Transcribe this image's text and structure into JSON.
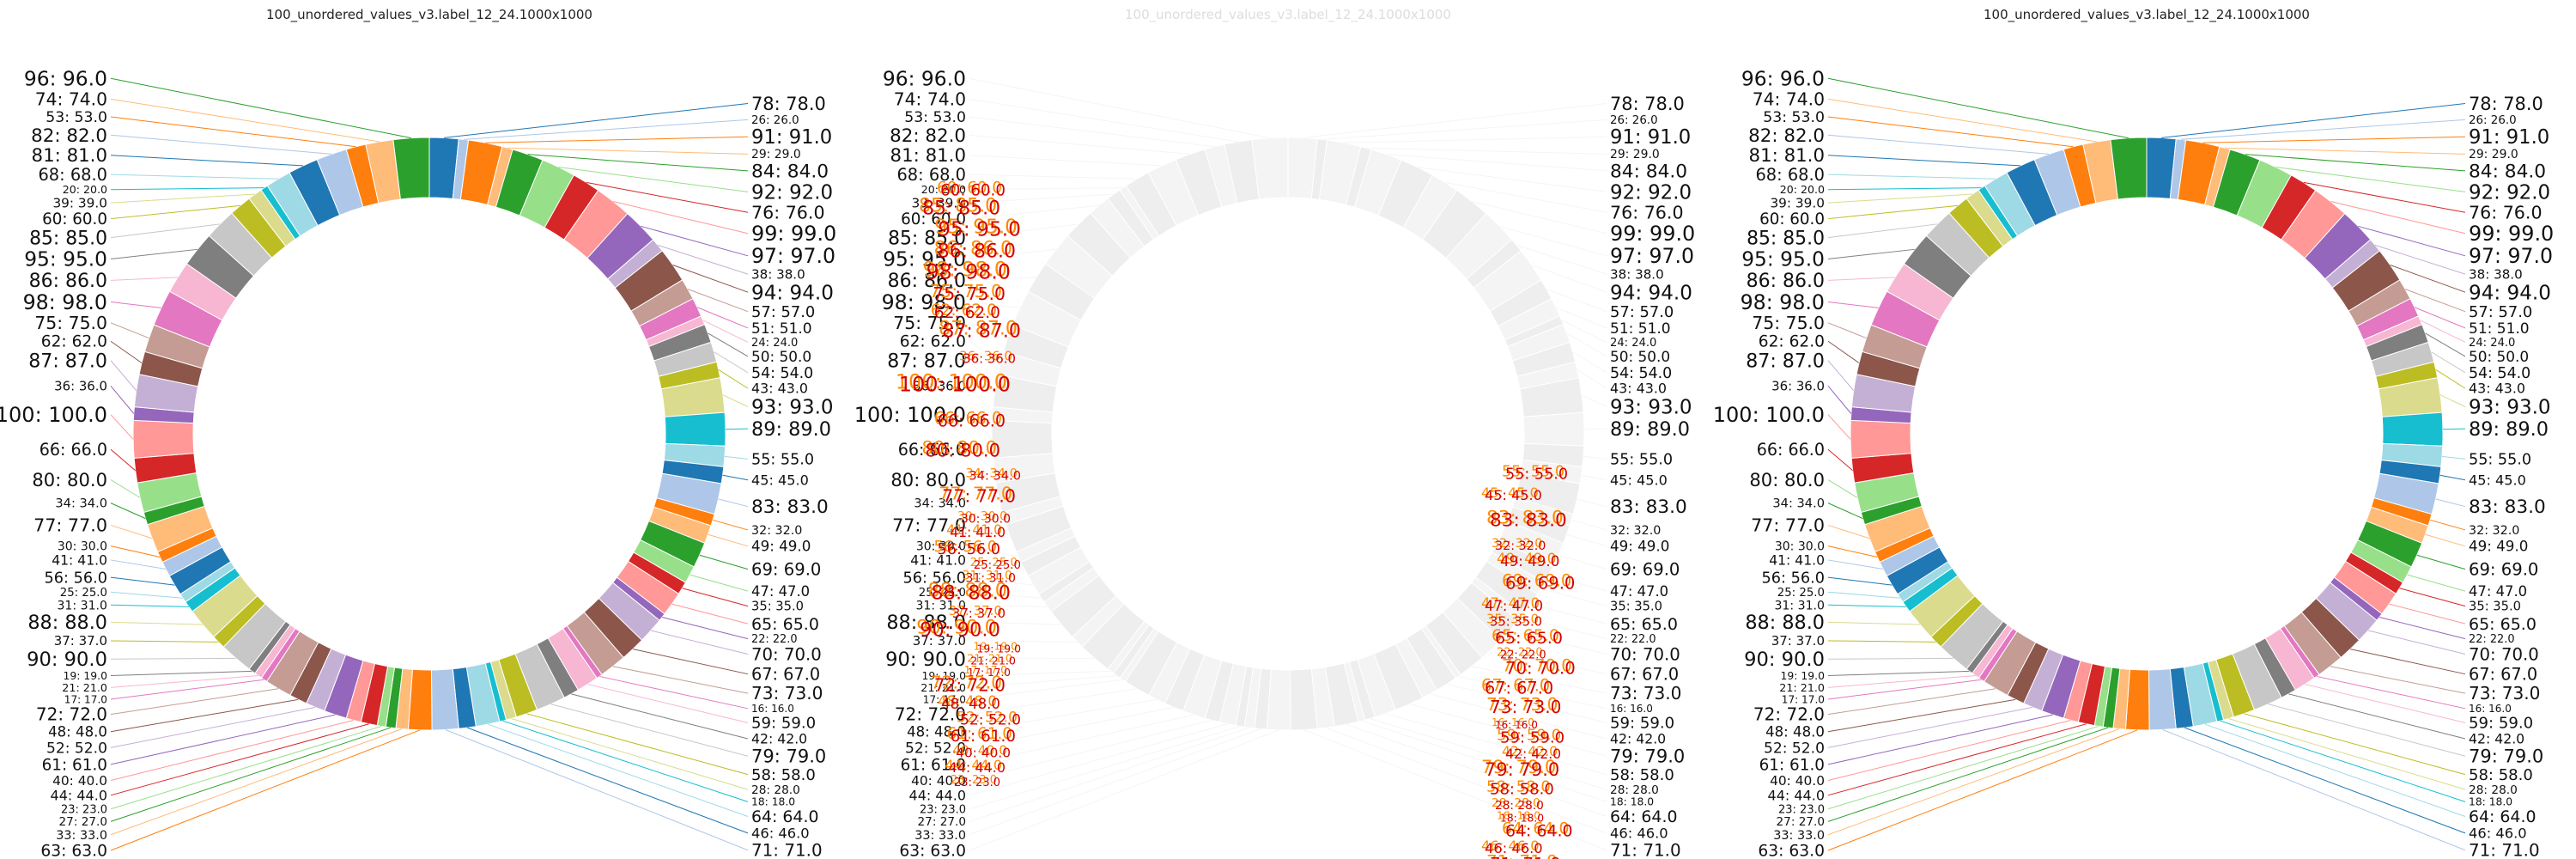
{
  "panels": [
    {
      "title": "100_unordered_values_v3.label_12_24.1000x1000",
      "style": "normal"
    },
    {
      "title": "100_unordered_values_v3.label_12_24.1000x1000",
      "style": "diff"
    },
    {
      "title": "100_unordered_values_v3.label_12_24.1000x1000",
      "style": "normal"
    }
  ],
  "chart_data": {
    "type": "pie",
    "donut": true,
    "label_format": "{v}: {v}.0",
    "label_font_range": [
      12,
      24
    ],
    "values": [
      78,
      26,
      91,
      29,
      84,
      92,
      76,
      99,
      97,
      38,
      94,
      57,
      51,
      24,
      50,
      54,
      43,
      93,
      89,
      55,
      45,
      83,
      32,
      49,
      69,
      47,
      35,
      65,
      22,
      70,
      67,
      73,
      16,
      59,
      42,
      79,
      58,
      28,
      18,
      64,
      46,
      71,
      63,
      33,
      27,
      23,
      44,
      40,
      61,
      52,
      48,
      72,
      17,
      21,
      19,
      90,
      37,
      88,
      31,
      25,
      56,
      41,
      30,
      77,
      34,
      80,
      66,
      100,
      36,
      87,
      62,
      75,
      98,
      86,
      95,
      85,
      60,
      39,
      20,
      68,
      81,
      82,
      53,
      74,
      96
    ],
    "colors": [
      "#1f77b4",
      "#aec7e8",
      "#ff7f0e",
      "#ffbb78",
      "#2ca02c",
      "#98df8a",
      "#d62728",
      "#ff9896",
      "#9467bd",
      "#c5b0d5",
      "#8c564b",
      "#c49c94",
      "#e377c2",
      "#f7b6d2",
      "#7f7f7f",
      "#c7c7c7",
      "#bcbd22",
      "#dbdb8d",
      "#17becf",
      "#9edae5"
    ]
  }
}
